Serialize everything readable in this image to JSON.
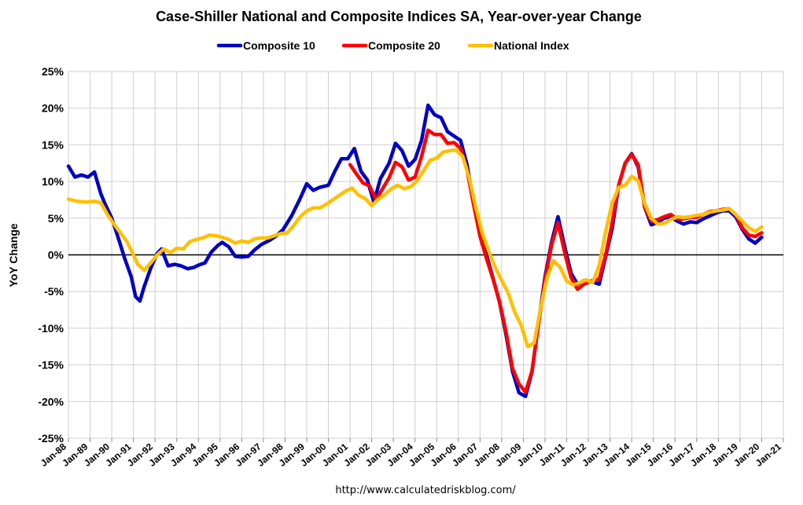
{
  "chart_data": {
    "type": "line",
    "title": "Case-Shiller National and Composite Indices SA, Year-over-year Change",
    "ylabel": "YoY Change",
    "xlabel": "",
    "source": "http://www.calculatedriskblog.com/",
    "ylim": [
      -25,
      25
    ],
    "yticks": [
      "25%",
      "20%",
      "15%",
      "10%",
      "5%",
      "0%",
      "-5%",
      "-10%",
      "-15%",
      "-20%",
      "-25%"
    ],
    "ytick_values": [
      25,
      20,
      15,
      10,
      5,
      0,
      -5,
      -10,
      -15,
      -20,
      -25
    ],
    "xlim": [
      1988,
      2021
    ],
    "xticks": [
      "Jan-88",
      "Jan-89",
      "Jan-90",
      "Jan-91",
      "Jan-92",
      "Jan-93",
      "Jan-94",
      "Jan-95",
      "Jan-96",
      "Jan-97",
      "Jan-98",
      "Jan-99",
      "Jan-00",
      "Jan-01",
      "Jan-02",
      "Jan-03",
      "Jan-04",
      "Jan-05",
      "Jan-06",
      "Jan-07",
      "Jan-08",
      "Jan-09",
      "Jan-10",
      "Jan-11",
      "Jan-12",
      "Jan-13",
      "Jan-14",
      "Jan-15",
      "Jan-16",
      "Jan-17",
      "Jan-18",
      "Jan-19",
      "Jan-20",
      "Jan-21"
    ],
    "xtick_values": [
      1988,
      1989,
      1990,
      1991,
      1992,
      1993,
      1994,
      1995,
      1996,
      1997,
      1998,
      1999,
      2000,
      2001,
      2002,
      2003,
      2004,
      2005,
      2006,
      2007,
      2008,
      2009,
      2010,
      2011,
      2012,
      2013,
      2014,
      2015,
      2016,
      2017,
      2018,
      2019,
      2020,
      2021
    ],
    "grid": true,
    "legend_position": "top",
    "series": [
      {
        "name": "Composite 10",
        "color": "#0000c0",
        "x": [
          1988.0,
          1988.3,
          1988.6,
          1988.9,
          1989.2,
          1989.5,
          1989.7,
          1990.0,
          1990.3,
          1990.6,
          1990.9,
          1991.1,
          1991.3,
          1991.5,
          1991.8,
          1992.1,
          1992.3,
          1992.6,
          1992.9,
          1993.2,
          1993.5,
          1993.8,
          1994.0,
          1994.3,
          1994.6,
          1994.9,
          1995.1,
          1995.4,
          1995.7,
          1996.0,
          1996.3,
          1996.6,
          1996.9,
          1997.3,
          1997.6,
          1997.9,
          1998.3,
          1998.7,
          1999.0,
          1999.3,
          1999.6,
          2000.0,
          2000.3,
          2000.6,
          2000.9,
          2001.2,
          2001.5,
          2001.8,
          2002.1,
          2002.4,
          2002.8,
          2003.1,
          2003.4,
          2003.7,
          2004.0,
          2004.3,
          2004.6,
          2004.9,
          2005.2,
          2005.5,
          2005.8,
          2006.1,
          2006.4,
          2006.7,
          2007.0,
          2007.3,
          2007.6,
          2007.9,
          2008.2,
          2008.5,
          2008.8,
          2009.1,
          2009.4,
          2009.7,
          2010.0,
          2010.3,
          2010.6,
          2010.9,
          2011.2,
          2011.5,
          2011.8,
          2012.1,
          2012.5,
          2012.8,
          2013.1,
          2013.4,
          2013.7,
          2014.0,
          2014.3,
          2014.6,
          2014.9,
          2015.2,
          2015.5,
          2015.8,
          2016.1,
          2016.4,
          2016.7,
          2017.0,
          2017.3,
          2017.6,
          2017.9,
          2018.2,
          2018.5,
          2018.8,
          2019.1,
          2019.4,
          2019.7,
          2020.0
        ],
        "values": [
          12.1,
          10.6,
          10.9,
          10.6,
          11.3,
          8.3,
          6.9,
          5.0,
          2.3,
          -0.5,
          -3.0,
          -5.7,
          -6.3,
          -4.3,
          -1.8,
          0.2,
          0.8,
          -1.5,
          -1.3,
          -1.5,
          -1.9,
          -1.7,
          -1.4,
          -1.1,
          0.4,
          1.3,
          1.7,
          1.1,
          -0.2,
          -0.3,
          -0.2,
          0.7,
          1.4,
          2.0,
          2.6,
          3.4,
          5.3,
          7.7,
          9.7,
          8.8,
          9.2,
          9.5,
          11.4,
          13.1,
          13.1,
          14.5,
          11.4,
          10.2,
          7.2,
          10.4,
          12.5,
          15.2,
          14.2,
          12.1,
          13.0,
          15.6,
          20.4,
          19.1,
          18.7,
          16.8,
          16.2,
          15.6,
          12.3,
          7.2,
          3.0,
          0.0,
          -3.2,
          -6.5,
          -10.9,
          -15.9,
          -18.8,
          -19.3,
          -15.9,
          -9.3,
          -3.0,
          1.7,
          5.2,
          1.2,
          -2.5,
          -4.0,
          -3.5,
          -3.6,
          -4.0,
          -0.2,
          3.6,
          9.5,
          12.5,
          13.8,
          12.0,
          6.5,
          4.1,
          4.4,
          5.0,
          5.2,
          4.6,
          4.2,
          4.5,
          4.4,
          4.9,
          5.3,
          5.7,
          6.0,
          6.0,
          5.2,
          3.5,
          2.2,
          1.6,
          2.4
        ]
      },
      {
        "name": "Composite 20",
        "color": "#ff0000",
        "x": [
          2001.0,
          2001.3,
          2001.6,
          2001.9,
          2002.2,
          2002.5,
          2002.8,
          2003.1,
          2003.4,
          2003.7,
          2004.0,
          2004.3,
          2004.6,
          2004.9,
          2005.2,
          2005.5,
          2005.8,
          2006.1,
          2006.4,
          2006.7,
          2007.0,
          2007.3,
          2007.6,
          2007.9,
          2008.2,
          2008.5,
          2008.8,
          2009.1,
          2009.4,
          2009.7,
          2010.0,
          2010.3,
          2010.6,
          2010.9,
          2011.2,
          2011.5,
          2011.8,
          2012.1,
          2012.5,
          2012.8,
          2013.1,
          2013.4,
          2013.7,
          2014.0,
          2014.3,
          2014.6,
          2014.9,
          2015.2,
          2015.5,
          2015.8,
          2016.1,
          2016.4,
          2016.7,
          2017.0,
          2017.3,
          2017.6,
          2017.9,
          2018.2,
          2018.5,
          2018.8,
          2019.1,
          2019.4,
          2019.7,
          2020.0
        ],
        "values": [
          12.3,
          11.0,
          9.8,
          9.4,
          7.5,
          9.0,
          10.5,
          12.6,
          12.0,
          10.2,
          10.6,
          13.4,
          17.0,
          16.4,
          16.4,
          15.2,
          15.3,
          14.5,
          11.6,
          6.9,
          2.5,
          -0.5,
          -3.3,
          -6.4,
          -10.5,
          -15.5,
          -17.6,
          -18.7,
          -15.8,
          -9.4,
          -3.4,
          1.3,
          4.4,
          0.4,
          -3.1,
          -4.7,
          -4.0,
          -3.6,
          -3.3,
          0.0,
          4.4,
          9.5,
          12.5,
          13.7,
          12.3,
          6.5,
          4.6,
          4.8,
          5.2,
          5.5,
          4.9,
          4.9,
          5.1,
          5.1,
          5.5,
          5.9,
          6.0,
          6.2,
          6.3,
          5.5,
          3.7,
          2.7,
          2.5,
          3.0
        ]
      },
      {
        "name": "National Index",
        "color": "#ffc000",
        "x": [
          1988.0,
          1988.4,
          1988.8,
          1989.2,
          1989.5,
          1989.8,
          1990.1,
          1990.4,
          1990.7,
          1991.0,
          1991.2,
          1991.5,
          1991.8,
          1992.1,
          1992.4,
          1992.7,
          1993.0,
          1993.3,
          1993.6,
          1993.9,
          1994.2,
          1994.5,
          1994.8,
          1995.1,
          1995.4,
          1995.7,
          1996.0,
          1996.3,
          1996.6,
          1996.9,
          1997.2,
          1997.5,
          1997.8,
          1998.1,
          1998.4,
          1998.7,
          1999.0,
          1999.3,
          1999.6,
          1999.9,
          2000.2,
          2000.5,
          2000.8,
          2001.1,
          2001.4,
          2001.7,
          2002.0,
          2002.3,
          2002.6,
          2002.9,
          2003.2,
          2003.5,
          2003.8,
          2004.1,
          2004.4,
          2004.7,
          2005.0,
          2005.3,
          2005.6,
          2005.9,
          2006.2,
          2006.5,
          2006.8,
          2007.1,
          2007.4,
          2007.7,
          2008.0,
          2008.3,
          2008.6,
          2008.9,
          2009.2,
          2009.5,
          2009.8,
          2010.1,
          2010.4,
          2010.7,
          2011.0,
          2011.3,
          2011.6,
          2011.9,
          2012.2,
          2012.5,
          2012.8,
          2013.1,
          2013.4,
          2013.7,
          2014.0,
          2014.3,
          2014.6,
          2014.9,
          2015.2,
          2015.5,
          2015.8,
          2016.1,
          2016.4,
          2016.7,
          2017.0,
          2017.3,
          2017.6,
          2017.9,
          2018.2,
          2018.5,
          2018.8,
          2019.1,
          2019.4,
          2019.7,
          2020.0
        ],
        "values": [
          7.6,
          7.3,
          7.2,
          7.3,
          7.1,
          5.5,
          4.2,
          3.0,
          1.8,
          0.0,
          -1.3,
          -2.1,
          -1.1,
          0.0,
          0.8,
          0.3,
          0.9,
          0.8,
          1.8,
          2.1,
          2.3,
          2.7,
          2.6,
          2.4,
          2.1,
          1.6,
          1.9,
          1.7,
          2.2,
          2.3,
          2.3,
          2.6,
          2.9,
          3.0,
          4.0,
          5.2,
          6.0,
          6.4,
          6.4,
          6.9,
          7.5,
          8.1,
          8.7,
          9.1,
          8.1,
          7.7,
          6.7,
          7.6,
          8.2,
          9.0,
          9.5,
          9.0,
          9.3,
          10.1,
          11.5,
          12.9,
          13.2,
          14.0,
          14.2,
          14.3,
          13.4,
          10.5,
          6.5,
          3.0,
          0.5,
          -1.7,
          -3.5,
          -5.2,
          -7.8,
          -9.6,
          -12.5,
          -12.0,
          -7.2,
          -3.0,
          -0.8,
          -1.7,
          -3.6,
          -4.1,
          -3.8,
          -3.4,
          -3.8,
          -1.4,
          3.2,
          7.1,
          9.2,
          9.5,
          10.7,
          10.1,
          7.0,
          5.0,
          4.2,
          4.3,
          4.8,
          5.2,
          5.1,
          5.2,
          5.4,
          5.5,
          5.8,
          6.0,
          6.1,
          6.3,
          5.5,
          4.6,
          3.7,
          3.2,
          3.8
        ]
      }
    ]
  }
}
